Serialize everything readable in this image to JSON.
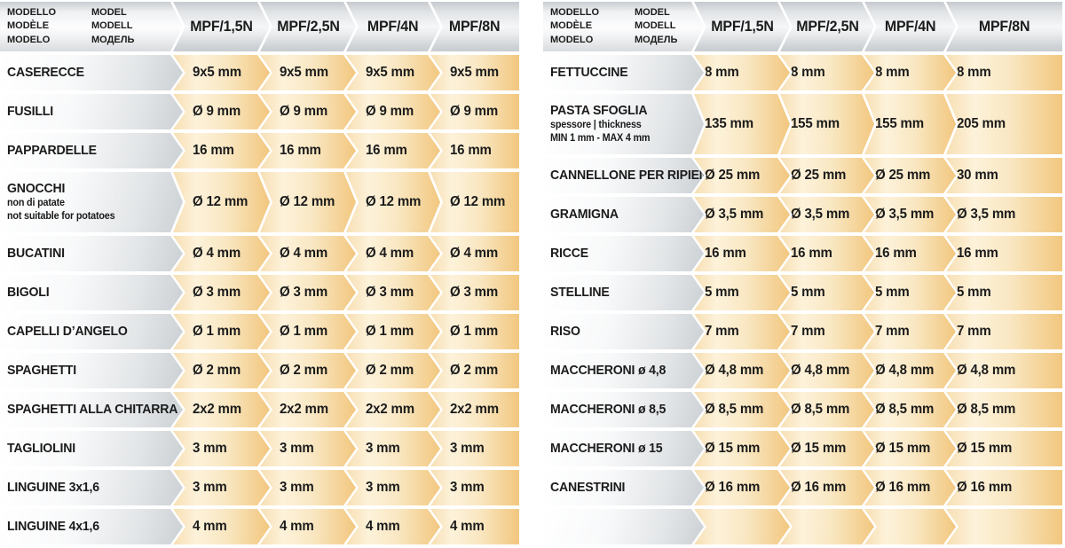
{
  "colors": {
    "page_background": "#ffffff",
    "chevron_orange_tip": "#f2c77f",
    "chevron_orange_pale": "#fdf2da",
    "chevron_gray_tip": "#cbd0d4",
    "header_gray": "#c9ced2",
    "text": "#1b1b1b"
  },
  "legend": {
    "column1": [
      "MODELLO",
      "MODÈLE",
      "MODELO"
    ],
    "column2": [
      "MODEL",
      "MODELL",
      "МОДЕЛЬ"
    ]
  },
  "models": [
    "MPF/1,5N",
    "MPF/2,5N",
    "MPF/4N",
    "MPF/8N"
  ],
  "left_table": {
    "rows": [
      {
        "label": "CASERECCE",
        "sublabels": [],
        "tall": false,
        "values": [
          "9x5 mm",
          "9x5 mm",
          "9x5 mm",
          "9x5 mm"
        ]
      },
      {
        "label": "FUSILLI",
        "sublabels": [],
        "tall": false,
        "values": [
          "Ø 9 mm",
          "Ø 9 mm",
          "Ø 9 mm",
          "Ø 9 mm"
        ]
      },
      {
        "label": "PAPPARDELLE",
        "sublabels": [],
        "tall": false,
        "values": [
          "16 mm",
          "16 mm",
          "16 mm",
          "16 mm"
        ]
      },
      {
        "label": "GNOCCHI",
        "sublabels": [
          "non di patate",
          "not suitable for potatoes"
        ],
        "tall": true,
        "values": [
          "Ø 12 mm",
          "Ø 12 mm",
          "Ø 12 mm",
          "Ø 12 mm"
        ]
      },
      {
        "label": "BUCATINI",
        "sublabels": [],
        "tall": false,
        "values": [
          "Ø 4 mm",
          "Ø 4 mm",
          "Ø 4 mm",
          "Ø 4 mm"
        ]
      },
      {
        "label": "BIGOLI",
        "sublabels": [],
        "tall": false,
        "values": [
          "Ø 3 mm",
          "Ø 3 mm",
          "Ø 3 mm",
          "Ø 3 mm"
        ]
      },
      {
        "label": "CAPELLI D’ANGELO",
        "sublabels": [],
        "tall": false,
        "values": [
          "Ø 1 mm",
          "Ø 1 mm",
          "Ø 1 mm",
          "Ø 1 mm"
        ]
      },
      {
        "label": "SPAGHETTI",
        "sublabels": [],
        "tall": false,
        "values": [
          "Ø 2 mm",
          "Ø 2 mm",
          "Ø 2 mm",
          "Ø 2 mm"
        ]
      },
      {
        "label": "SPAGHETTI ALLA CHITARRA",
        "sublabels": [],
        "tall": false,
        "values": [
          "2x2 mm",
          "2x2 mm",
          "2x2 mm",
          "2x2 mm"
        ]
      },
      {
        "label": "TAGLIOLINI",
        "sublabels": [],
        "tall": false,
        "values": [
          "3 mm",
          "3 mm",
          "3 mm",
          "3 mm"
        ]
      },
      {
        "label": "LINGUINE 3x1,6",
        "sublabels": [],
        "tall": false,
        "values": [
          "3 mm",
          "3 mm",
          "3 mm",
          "3 mm"
        ]
      },
      {
        "label": "LINGUINE 4x1,6",
        "sublabels": [],
        "tall": false,
        "values": [
          "4 mm",
          "4 mm",
          "4 mm",
          "4 mm"
        ]
      }
    ]
  },
  "right_table": {
    "rows": [
      {
        "label": "FETTUCCINE",
        "sublabels": [],
        "tall": false,
        "values": [
          "8 mm",
          "8 mm",
          "8 mm",
          "8 mm"
        ]
      },
      {
        "label": "PASTA SFOGLIA",
        "sublabels": [
          "spessore | thickness",
          "MIN 1 mm - MAX 4 mm"
        ],
        "tall": true,
        "values": [
          "135 mm",
          "155 mm",
          "155 mm",
          "205 mm"
        ]
      },
      {
        "label": "CANNELLONE PER RIPIENO",
        "sublabels": [],
        "tall": false,
        "values": [
          "Ø 25 mm",
          "Ø 25 mm",
          "Ø 25 mm",
          "30 mm"
        ]
      },
      {
        "label": "GRAMIGNA",
        "sublabels": [],
        "tall": false,
        "values": [
          "Ø 3,5 mm",
          "Ø 3,5 mm",
          "Ø 3,5 mm",
          "Ø 3,5 mm"
        ]
      },
      {
        "label": "RICCE",
        "sublabels": [],
        "tall": false,
        "values": [
          "16 mm",
          "16 mm",
          "16 mm",
          "16 mm"
        ]
      },
      {
        "label": "STELLINE",
        "sublabels": [],
        "tall": false,
        "values": [
          "5 mm",
          "5 mm",
          "5 mm",
          "5 mm"
        ]
      },
      {
        "label": "RISO",
        "sublabels": [],
        "tall": false,
        "values": [
          "7 mm",
          "7 mm",
          "7 mm",
          "7 mm"
        ]
      },
      {
        "label": "MACCHERONI ø 4,8",
        "sublabels": [],
        "tall": false,
        "values": [
          "Ø 4,8 mm",
          "Ø 4,8 mm",
          "Ø 4,8 mm",
          "Ø 4,8 mm"
        ]
      },
      {
        "label": "MACCHERONI ø 8,5",
        "sublabels": [],
        "tall": false,
        "values": [
          "Ø 8,5 mm",
          "Ø 8,5 mm",
          "Ø 8,5 mm",
          "Ø 8,5 mm"
        ]
      },
      {
        "label": "MACCHERONI ø 15",
        "sublabels": [],
        "tall": false,
        "values": [
          "Ø 15 mm",
          "Ø 15 mm",
          "Ø 15 mm",
          "Ø 15 mm"
        ]
      },
      {
        "label": "CANESTRINI",
        "sublabels": [],
        "tall": false,
        "values": [
          "Ø 16 mm",
          "Ø 16 mm",
          "Ø 16 mm",
          "Ø 16 mm"
        ]
      },
      {
        "label": "",
        "sublabels": [],
        "tall": false,
        "values": [
          "",
          "",
          "",
          ""
        ]
      }
    ]
  }
}
